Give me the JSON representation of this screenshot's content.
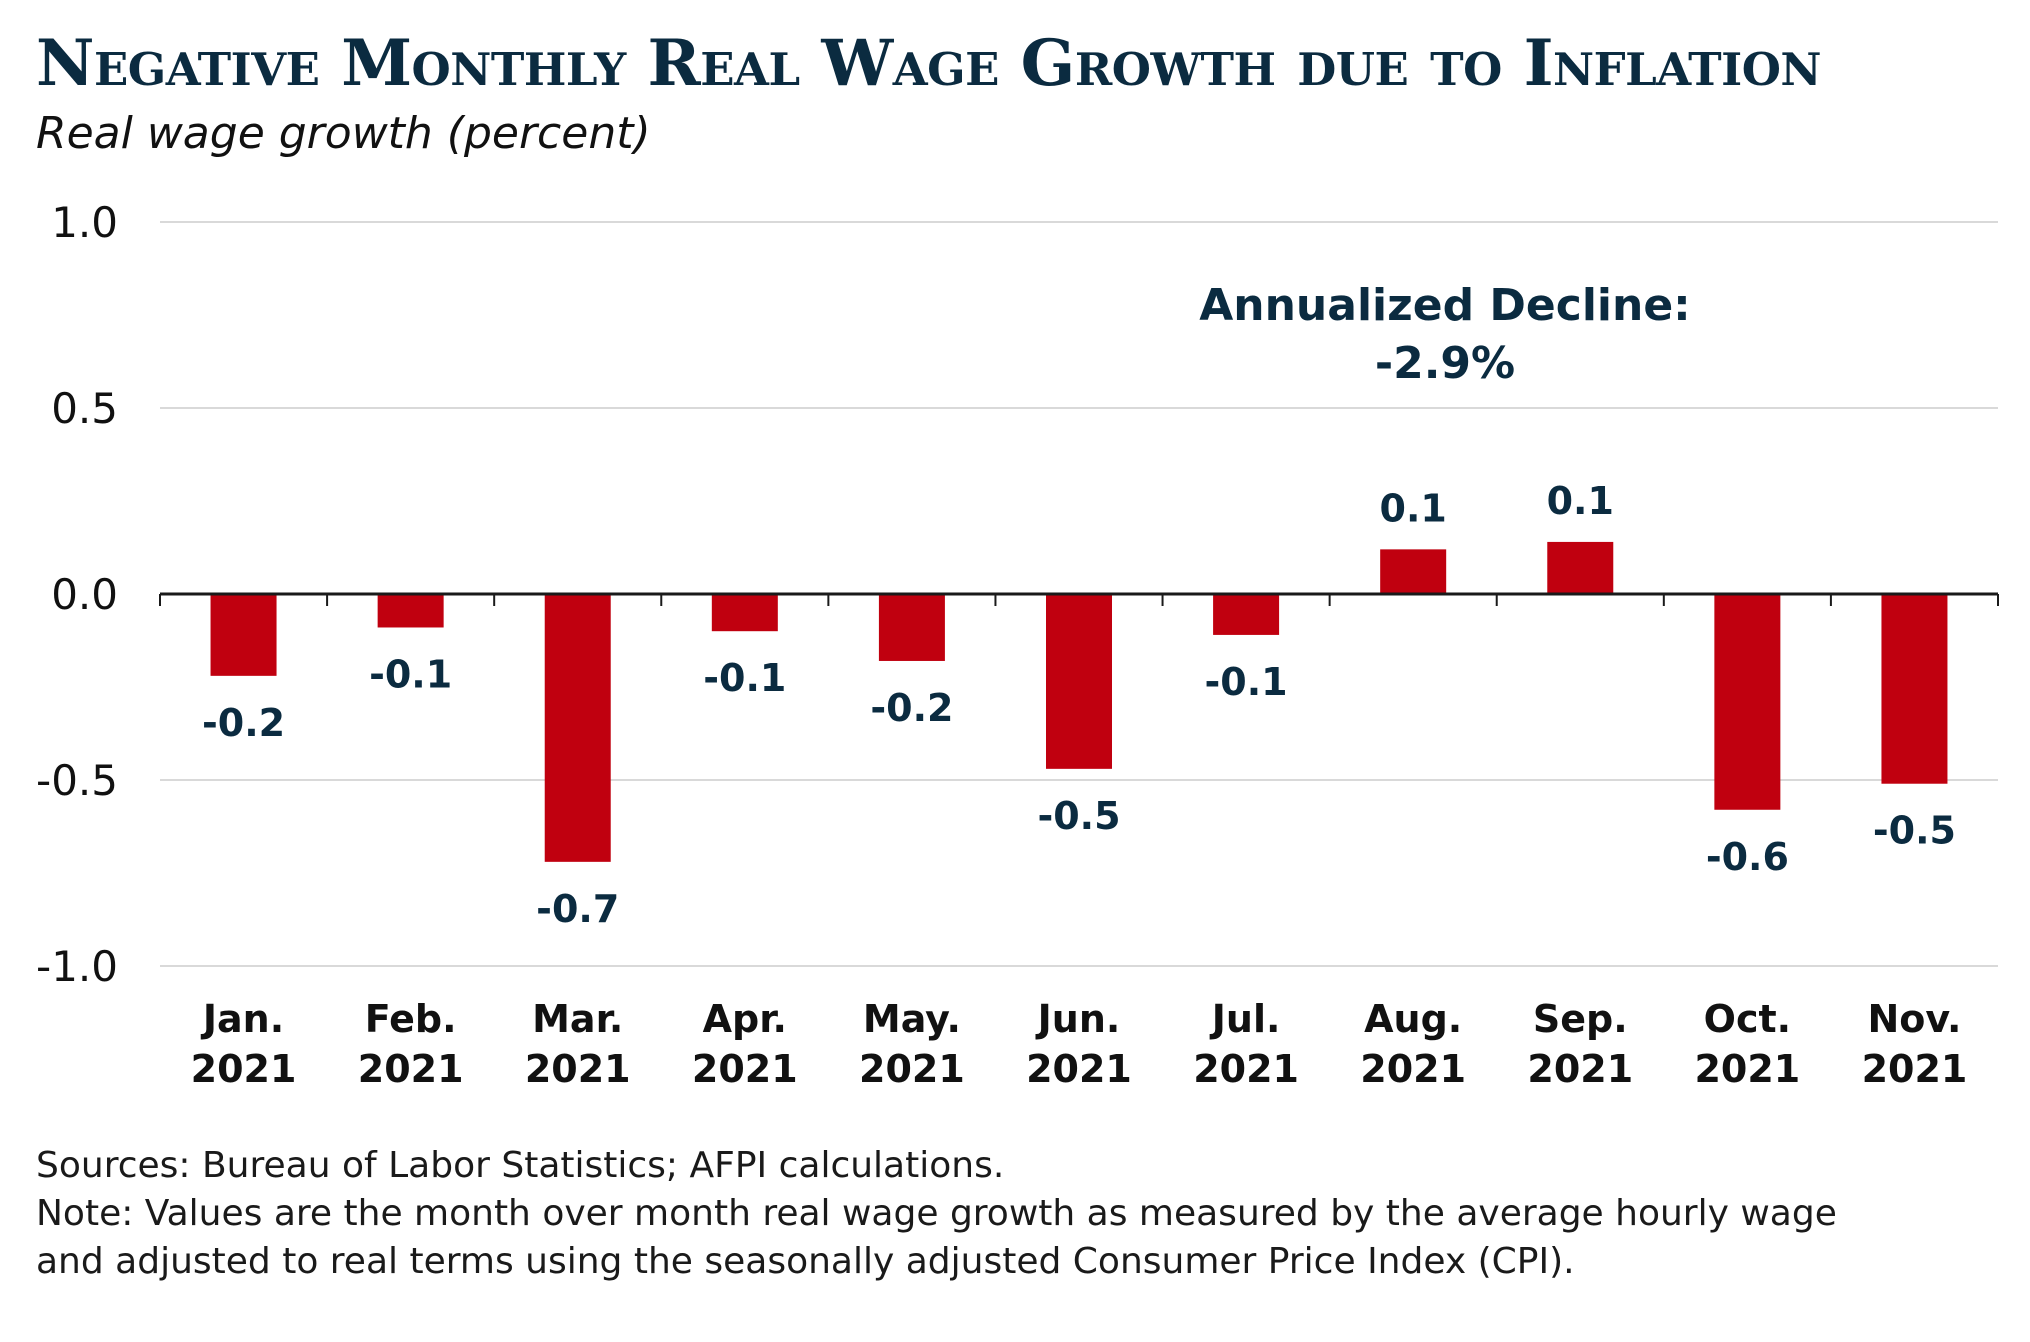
{
  "chart_data": {
    "type": "bar",
    "title": "Negative Monthly Real Wage Growth due to Inflation",
    "subtitle": "Real wage growth (percent)",
    "categories": [
      [
        "Jan.",
        "2021"
      ],
      [
        "Feb.",
        "2021"
      ],
      [
        "Mar.",
        "2021"
      ],
      [
        "Apr.",
        "2021"
      ],
      [
        "May.",
        "2021"
      ],
      [
        "Jun.",
        "2021"
      ],
      [
        "Jul.",
        "2021"
      ],
      [
        "Aug.",
        "2021"
      ],
      [
        "Sep.",
        "2021"
      ],
      [
        "Oct.",
        "2021"
      ],
      [
        "Nov.",
        "2021"
      ]
    ],
    "values": [
      -0.22,
      -0.09,
      -0.72,
      -0.1,
      -0.18,
      -0.47,
      -0.11,
      0.12,
      0.14,
      -0.58,
      -0.51
    ],
    "data_labels": [
      "-0.2",
      "-0.1",
      "-0.7",
      "-0.1",
      "-0.2",
      "-0.5",
      "-0.1",
      "0.1",
      "0.1",
      "-0.6",
      "-0.5"
    ],
    "ylim": [
      -1.0,
      1.0
    ],
    "yticks": [
      1.0,
      0.5,
      0.0,
      -0.5,
      -1.0
    ],
    "ytick_labels": [
      "1.0",
      "0.5",
      "0.0",
      "-0.5",
      "-1.0"
    ],
    "grid": true,
    "bar_color": "#c0000f",
    "annotation": {
      "line1": "Annualized Decline:",
      "line2": "-2.9%"
    }
  },
  "sources": "Sources: Bureau of Labor Statistics; AFPI calculations.",
  "note_line1": "Note: Values are the month over month real wage growth as measured by the average hourly wage",
  "note_line2": "and adjusted to real terms using the seasonally adjusted Consumer Price Index (CPI).",
  "colors": {
    "title": "#0b2b40",
    "label": "#0b2b40",
    "grid": "#d9d9d9",
    "axis": "#1a1a1a"
  }
}
